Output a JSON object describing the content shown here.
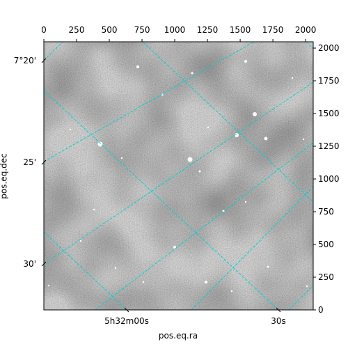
{
  "chart_data": {
    "type": "image",
    "x_label": "pos.eq.ra",
    "y_label": "pos.eq.dec",
    "xlim": [
      0,
      2058
    ],
    "ylim": [
      0,
      2048
    ],
    "xticks": [
      0,
      250,
      500,
      750,
      1000,
      1250,
      1500,
      1750,
      2000
    ],
    "yticks": [
      0,
      250,
      500,
      750,
      1000,
      1250,
      1500,
      1750,
      2000
    ],
    "ra_ticks": [
      {
        "value": 83.0,
        "label": "5h32m00s"
      },
      {
        "value": 82.875,
        "label": "30s"
      }
    ],
    "dec_ticks": [
      {
        "value": 7.3333,
        "label": "7°20'"
      },
      {
        "value": 7.4167,
        "label": "25'"
      },
      {
        "value": 7.5,
        "label": "30'"
      }
    ],
    "grid_color": "#00d0d0"
  }
}
